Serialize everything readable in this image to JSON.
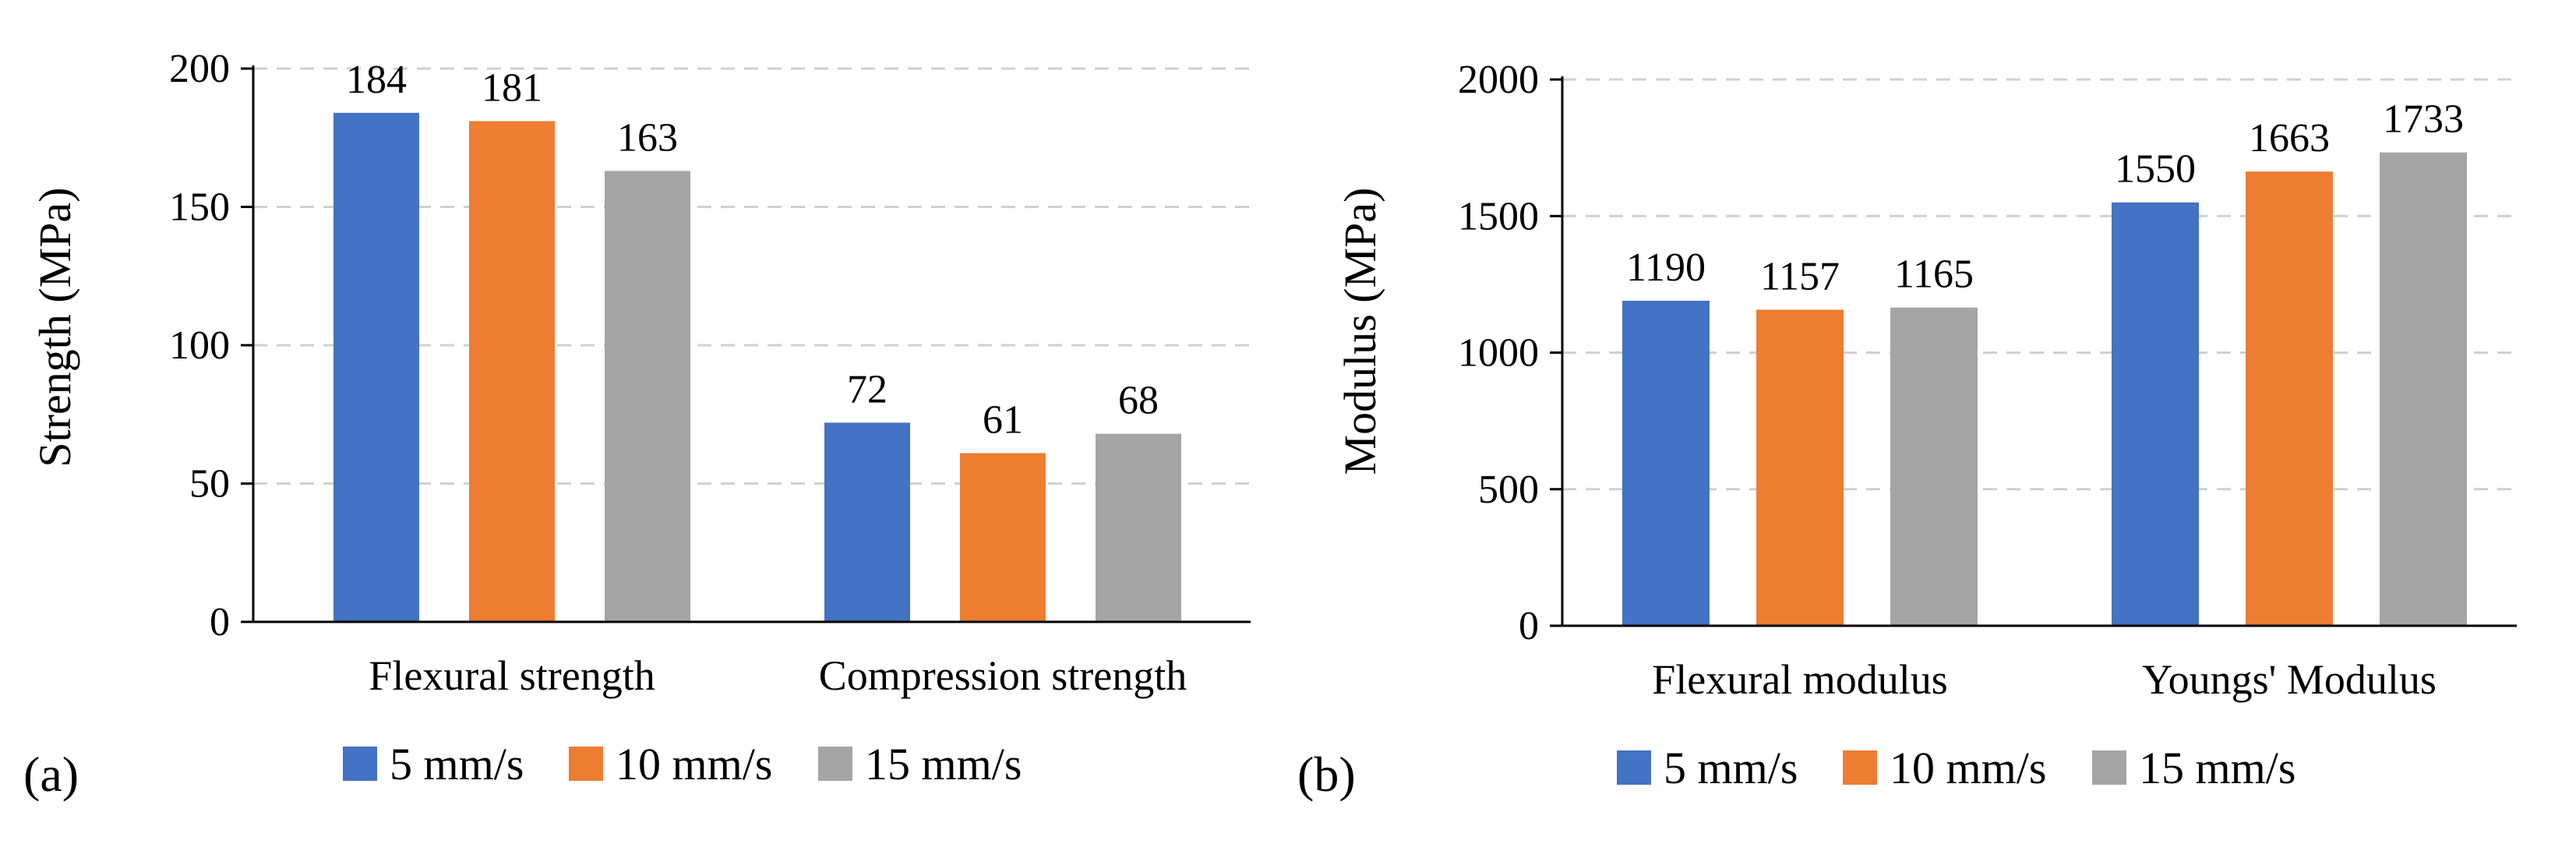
{
  "colors": [
    "#4472C4",
    "#ED7D31",
    "#A5A5A5"
  ],
  "legend": [
    "5 mm/s",
    "10 mm/s",
    "15 mm/s"
  ],
  "chart_data": [
    {
      "type": "bar",
      "panel_label": "(a)",
      "ylabel": "Strength (MPa)",
      "xlabel": "",
      "ylim": [
        0,
        200
      ],
      "yticks": [
        0,
        50,
        100,
        150,
        200
      ],
      "grid": true,
      "categories": [
        "Flexural strength",
        "Compression strength"
      ],
      "series": [
        {
          "name": "5 mm/s",
          "values": [
            184,
            72
          ]
        },
        {
          "name": "10 mm/s",
          "values": [
            181,
            61
          ]
        },
        {
          "name": "15 mm/s",
          "values": [
            163,
            68
          ]
        }
      ]
    },
    {
      "type": "bar",
      "panel_label": "(b)",
      "ylabel": "Modulus (MPa)",
      "xlabel": "",
      "ylim": [
        0,
        2000
      ],
      "yticks": [
        0,
        500,
        1000,
        1500,
        2000
      ],
      "grid": true,
      "categories": [
        "Flexural modulus",
        "Youngs' Modulus"
      ],
      "series": [
        {
          "name": "5 mm/s",
          "values": [
            1190,
            1550
          ]
        },
        {
          "name": "10 mm/s",
          "values": [
            1157,
            1663
          ]
        },
        {
          "name": "15 mm/s",
          "values": [
            1165,
            1733
          ]
        }
      ]
    }
  ]
}
